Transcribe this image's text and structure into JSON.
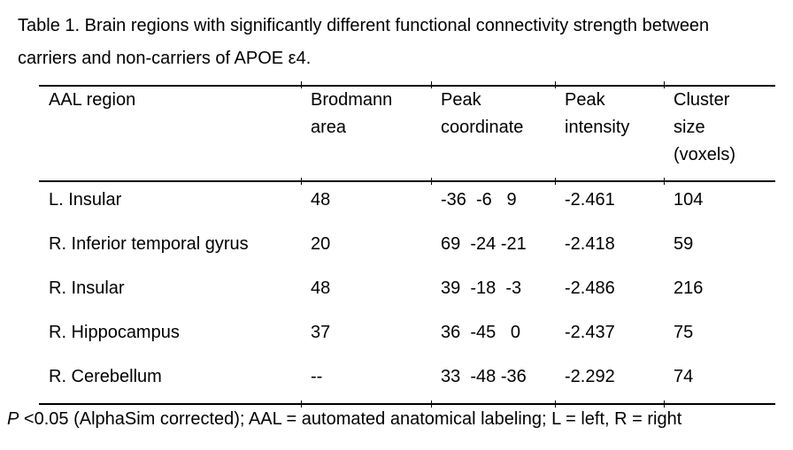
{
  "caption": {
    "line1": "Table 1. Brain regions with significantly different functional connectivity strength between",
    "line2": "carriers and non-carriers of APOE ε4."
  },
  "table": {
    "columns": [
      [
        "AAL region"
      ],
      [
        "Brodmann",
        "area"
      ],
      [
        "Peak",
        "coordinate"
      ],
      [
        "Peak",
        "intensity"
      ],
      [
        "Cluster",
        "size",
        "(voxels)"
      ]
    ],
    "rows": [
      {
        "region": "L. Insular",
        "brodmann": "48",
        "coord": "-36  -6   9",
        "intensity": "-2.461",
        "cluster": "104"
      },
      {
        "region": "R. Inferior temporal gyrus",
        "brodmann": "20",
        "coord": "69  -24 -21",
        "intensity": "-2.418",
        "cluster": "59"
      },
      {
        "region": "R. Insular",
        "brodmann": "48",
        "coord": "39  -18  -3",
        "intensity": "-2.486",
        "cluster": "216"
      },
      {
        "region": "R. Hippocampus",
        "brodmann": "37",
        "coord": "36  -45   0",
        "intensity": "-2.437",
        "cluster": "75"
      },
      {
        "region": "R. Cerebellum",
        "brodmann": "--",
        "coord": "33  -48 -36",
        "intensity": "-2.292",
        "cluster": "74"
      }
    ]
  },
  "footnote": {
    "p_symbol": "P",
    "text": " <0.05 (AlphaSim corrected); AAL = automated anatomical labeling; L = left, R = right"
  },
  "colors": {
    "text": "#000000",
    "background": "#ffffff",
    "rule": "#000000"
  }
}
